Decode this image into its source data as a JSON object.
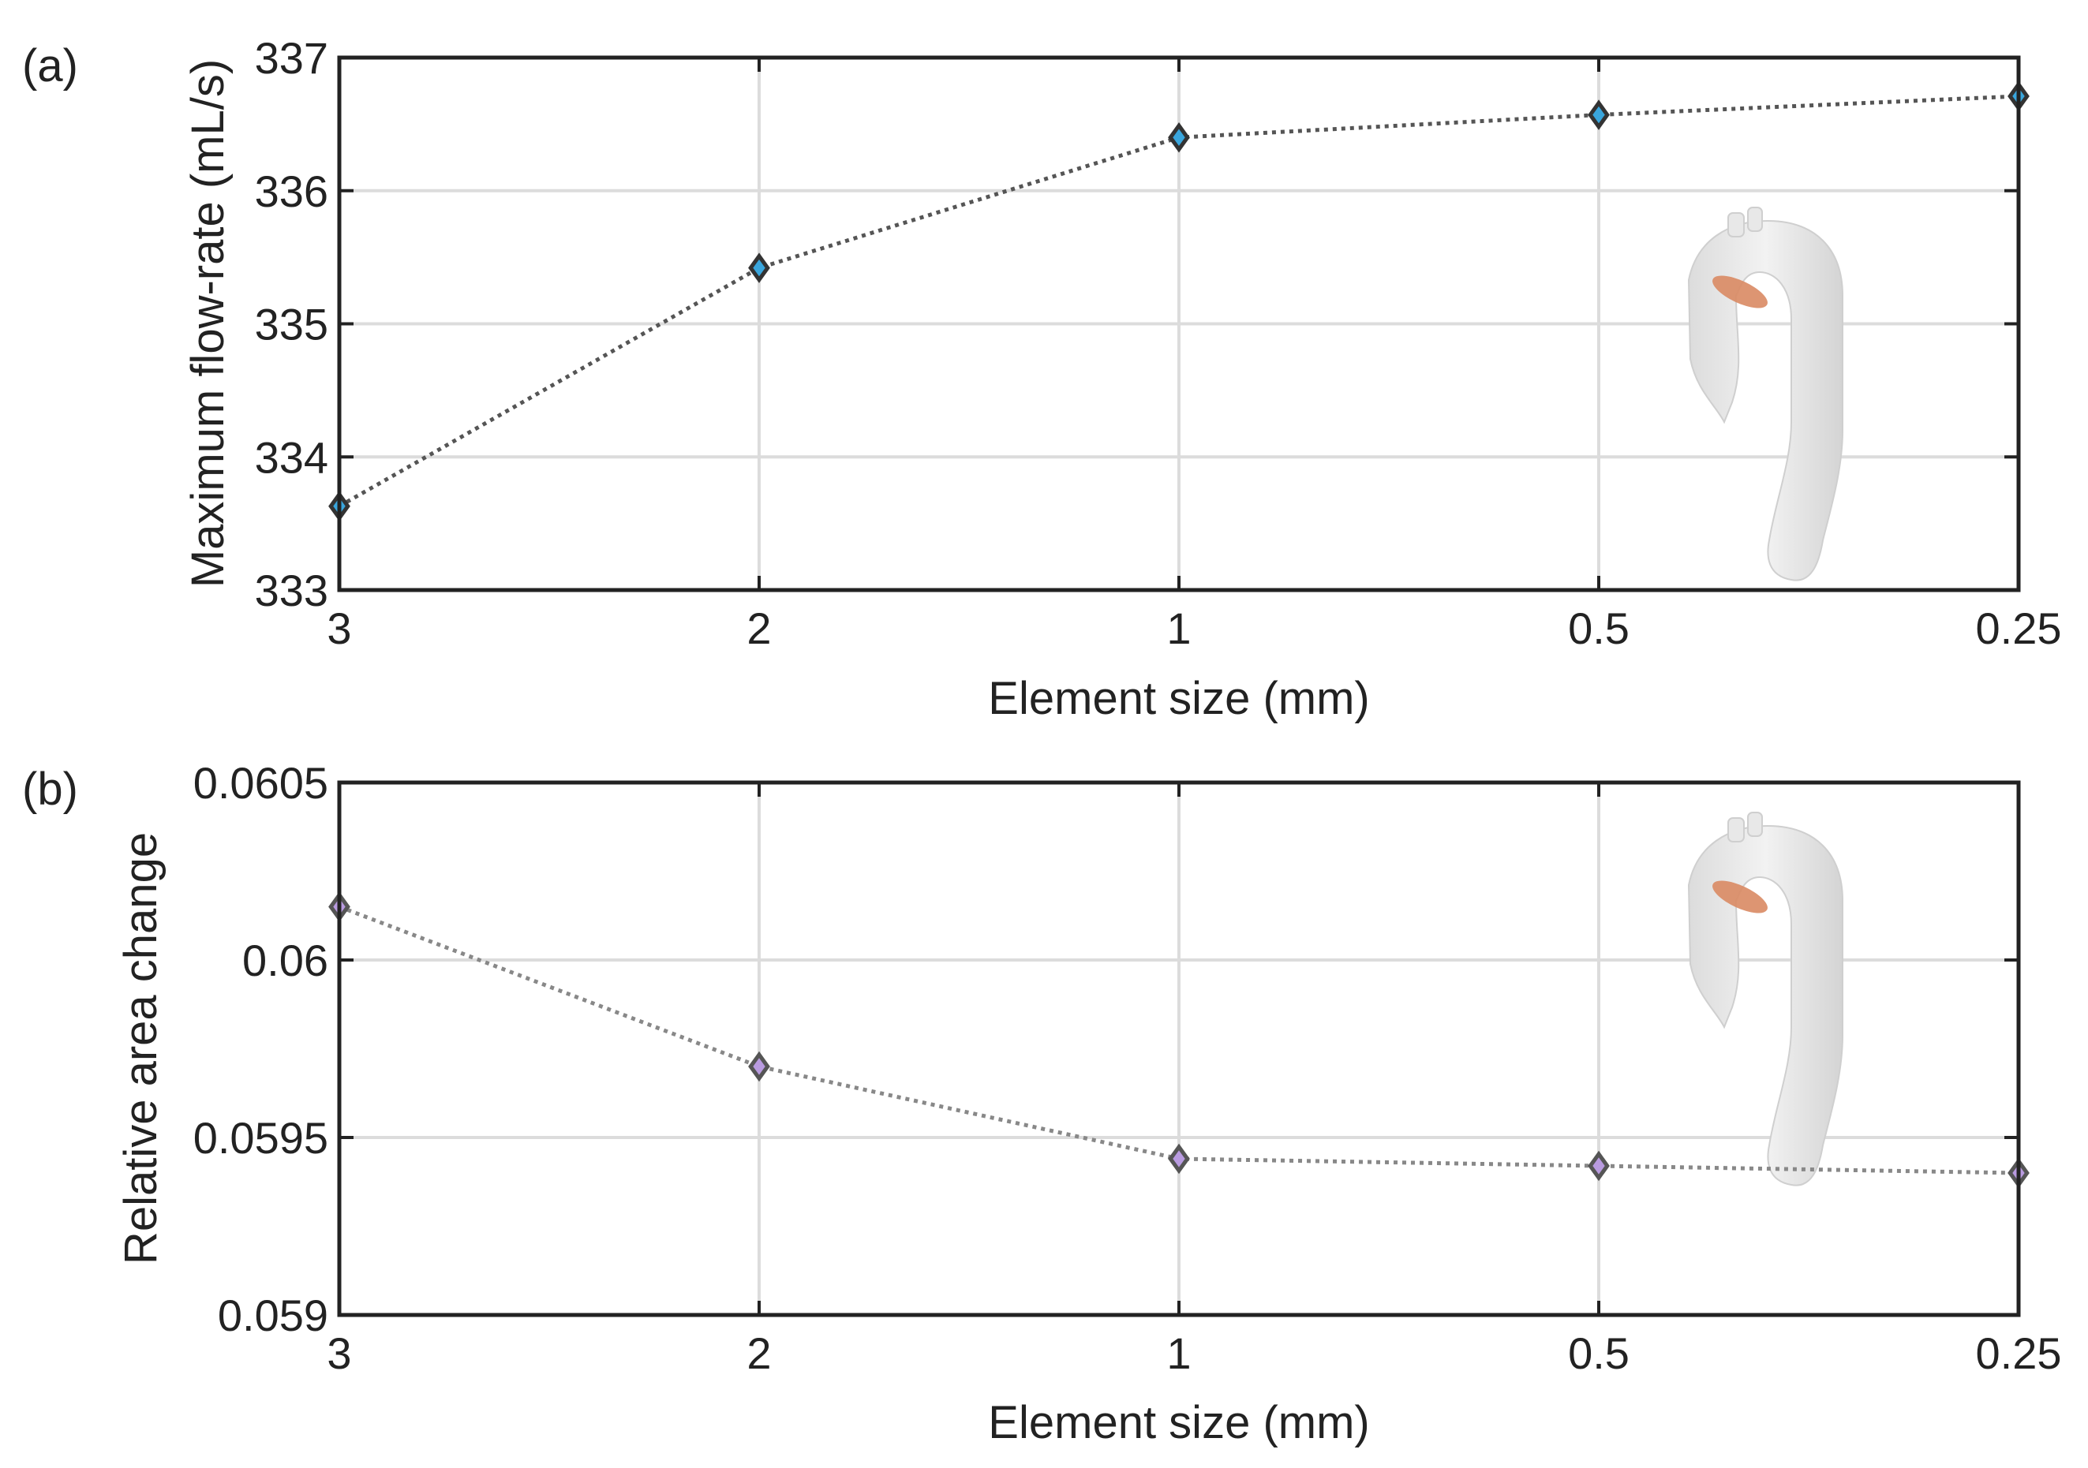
{
  "chart_data": [
    {
      "type": "line",
      "panel_label": "(a)",
      "categories": [
        "3",
        "2",
        "1",
        "0.5",
        "0.25"
      ],
      "series": [
        {
          "name": "Maximum flow-rate",
          "values": [
            333.63,
            335.42,
            336.4,
            336.57,
            336.71
          ],
          "marker": "diamond",
          "color": "#3aa6dd"
        }
      ],
      "xlabel": "Element size (mm)",
      "ylabel": "Maximum flow-rate (mL/s)",
      "ylim": [
        333,
        337
      ],
      "yticks": [
        333,
        334,
        335,
        336,
        337
      ],
      "ytick_labels": [
        "333",
        "334",
        "335",
        "336",
        "337"
      ],
      "grid": true,
      "inset": "aorta-model",
      "inset_highlight_color": "#d98a63"
    },
    {
      "type": "line",
      "panel_label": "(b)",
      "categories": [
        "3",
        "2",
        "1",
        "0.5",
        "0.25"
      ],
      "series": [
        {
          "name": "Relative area change",
          "values": [
            0.06015,
            0.0597,
            0.05944,
            0.05942,
            0.0594
          ],
          "marker": "diamond",
          "color": "#b99be0"
        }
      ],
      "xlabel": "Element size (mm)",
      "ylabel": "Relative area change",
      "ylim": [
        0.059,
        0.0605
      ],
      "yticks": [
        0.059,
        0.0595,
        0.06,
        0.0605
      ],
      "ytick_labels": [
        "0.059",
        "0.0595",
        "0.06",
        "0.0605"
      ],
      "grid": true,
      "inset": "aorta-model",
      "inset_highlight_color": "#d98a63"
    }
  ]
}
